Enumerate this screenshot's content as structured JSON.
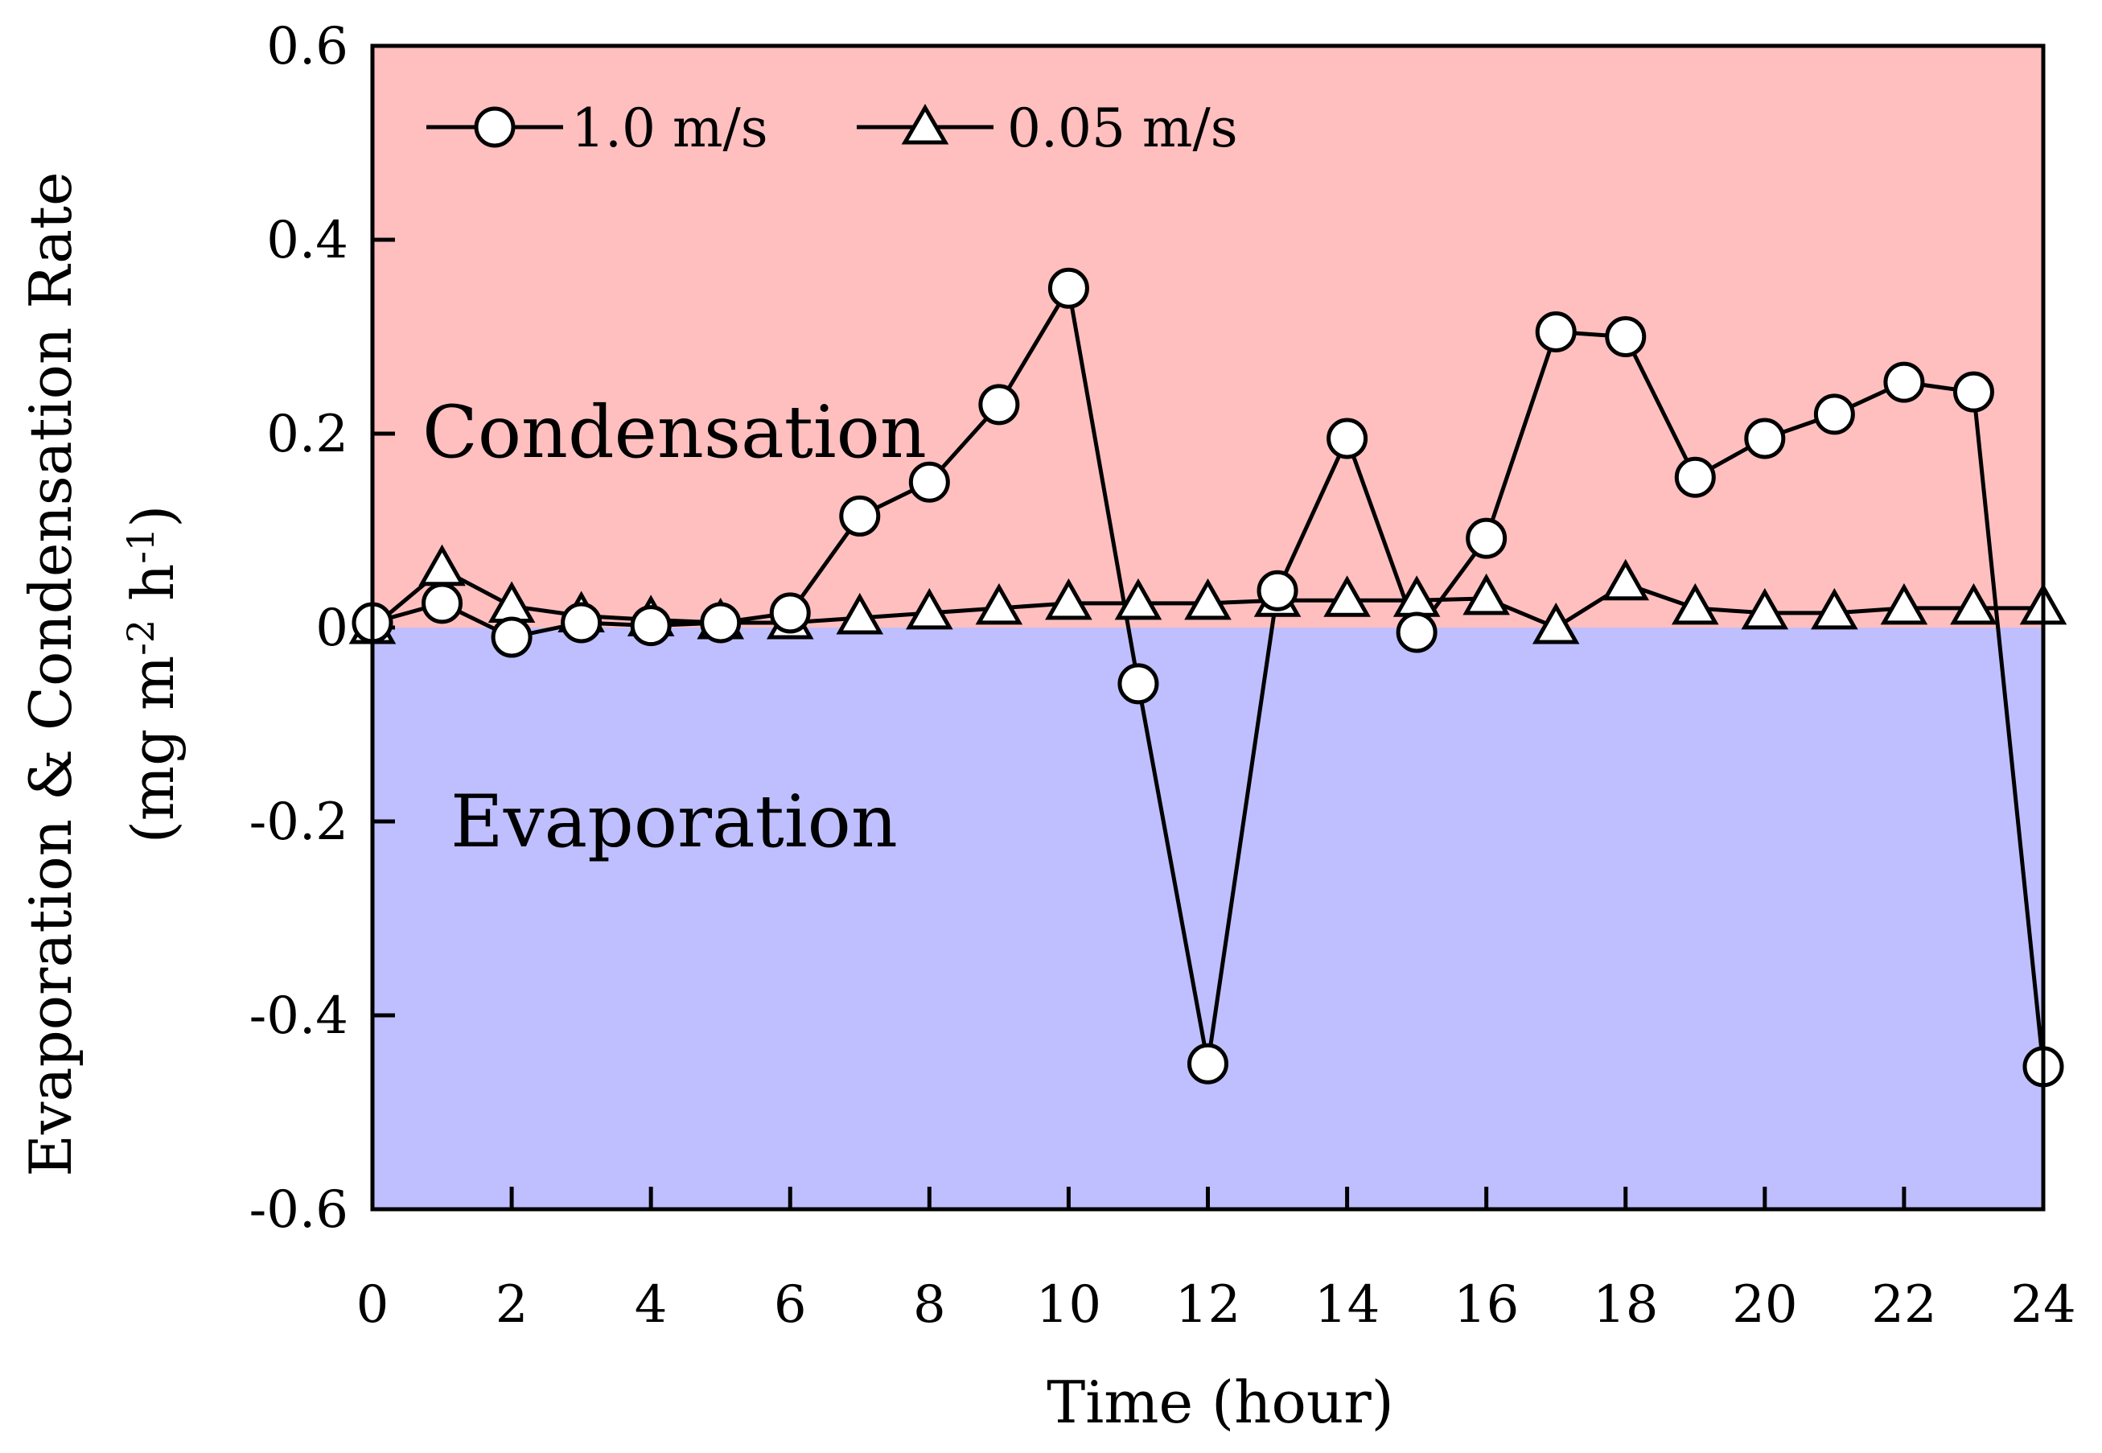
{
  "chart_data": {
    "type": "line",
    "x": [
      0,
      1,
      2,
      3,
      4,
      5,
      6,
      7,
      8,
      9,
      10,
      11,
      12,
      13,
      14,
      15,
      16,
      17,
      18,
      19,
      20,
      21,
      22,
      23,
      24
    ],
    "series": [
      {
        "name": "1.0 m/s",
        "marker": "circle",
        "values": [
          0.005,
          0.025,
          -0.01,
          0.005,
          0.002,
          0.005,
          0.015,
          0.115,
          0.15,
          0.23,
          0.35,
          -0.058,
          -0.45,
          0.038,
          0.195,
          -0.005,
          0.092,
          0.305,
          0.3,
          0.155,
          0.195,
          0.22,
          0.253,
          0.243,
          -0.453
        ]
      },
      {
        "name": "0.05 m/s",
        "marker": "triangle",
        "values": [
          0.0,
          0.06,
          0.022,
          0.012,
          0.008,
          0.005,
          0.005,
          0.01,
          0.015,
          0.02,
          0.025,
          0.025,
          0.025,
          0.028,
          0.028,
          0.028,
          0.03,
          0.0,
          0.045,
          0.02,
          0.015,
          0.015,
          0.02,
          0.02,
          0.02
        ]
      }
    ],
    "xlabel": "Time (hour)",
    "ylabel": "Evaporation & Condensation Rate",
    "ylabel_unit_prefix": "(mg m",
    "ylabel_unit_sup1": "-2",
    "ylabel_unit_mid": " h",
    "ylabel_unit_sup2": "-1",
    "ylabel_unit_suffix": ")",
    "xlim": [
      0,
      24
    ],
    "ylim": [
      -0.6,
      0.6
    ],
    "xticks": [
      0,
      2,
      4,
      6,
      8,
      10,
      12,
      14,
      16,
      18,
      20,
      22,
      24
    ],
    "xtick_labels": [
      "0",
      "2",
      "4",
      "6",
      "8",
      "10",
      "12",
      "14",
      "16",
      "18",
      "20",
      "22",
      "24"
    ],
    "yticks": [
      0.6,
      0.4,
      0.2,
      0,
      -0.2,
      -0.4,
      -0.6
    ],
    "ytick_labels": [
      "0.6",
      "0.4",
      "0.2",
      "0",
      "-0.2",
      "-0.4",
      "-0.6"
    ],
    "regions": [
      {
        "name": "condensation",
        "label": "Condensation",
        "range": [
          0,
          0.6
        ],
        "color": "#ffbfbf"
      },
      {
        "name": "evaporation",
        "label": "Evaporation",
        "range": [
          -0.6,
          0
        ],
        "color": "#bfbfff"
      }
    ],
    "legend_position": "top-left",
    "grid": false
  }
}
